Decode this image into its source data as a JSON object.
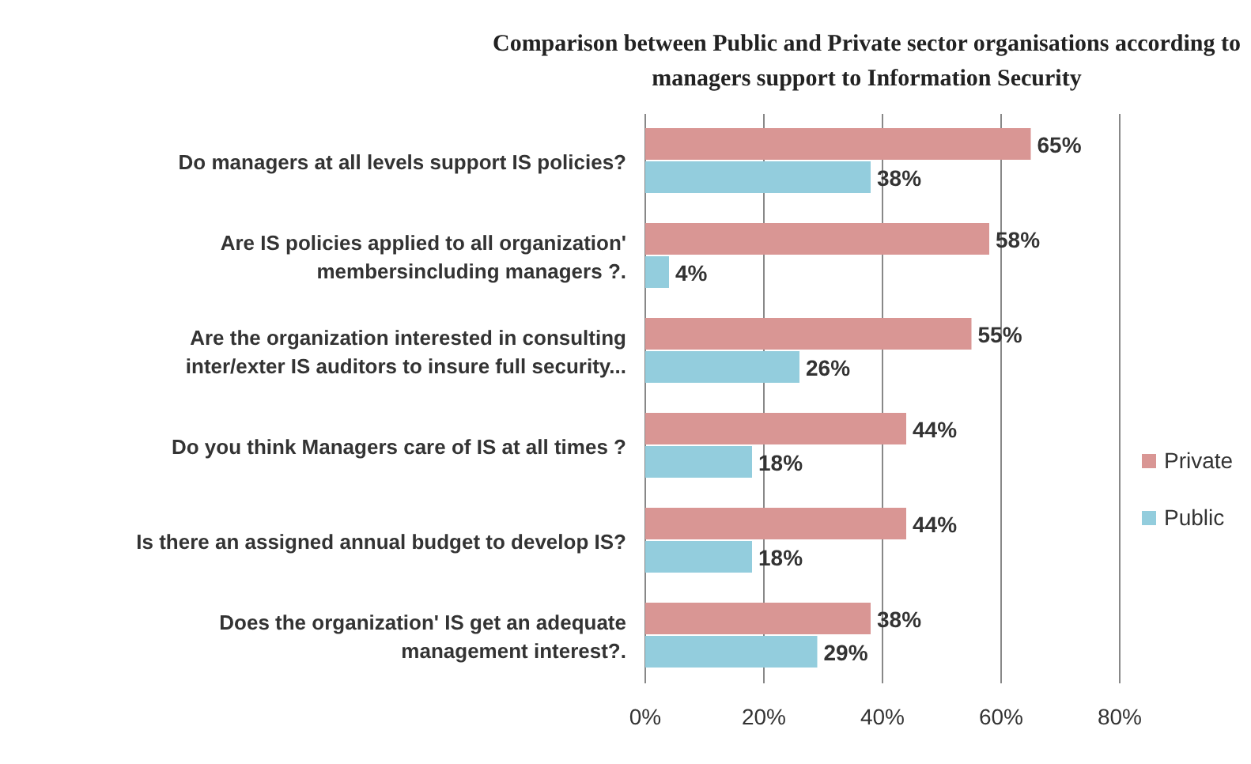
{
  "chart_data": {
    "type": "bar",
    "orientation": "horizontal",
    "title": "Comparison between Public and Private sector  organisations according to managers support to Information Security",
    "categories": [
      "Do managers at all levels support IS policies?",
      "Are IS policies applied to all organization' membersincluding  managers  ?.",
      "Are the organization interested in consulting inter/exter IS auditors to insure full security...",
      "Do you think Managers care of IS at all times ?",
      "Is there an assigned annual budget to develop IS?",
      "Does the organization' IS get an adequate management interest?."
    ],
    "series": [
      {
        "name": "Private",
        "color": "#d99694",
        "values": [
          65,
          58,
          55,
          44,
          44,
          38
        ],
        "value_labels": [
          "65%",
          "58%",
          "55%",
          "44%",
          "44%",
          "38%"
        ]
      },
      {
        "name": "Public",
        "color": "#93cddd",
        "values": [
          38,
          4,
          26,
          18,
          18,
          29
        ],
        "value_labels": [
          "38%",
          "4%",
          "26%",
          "18%",
          "18%",
          "29%"
        ]
      }
    ],
    "xlim": [
      0,
      80
    ],
    "xticks": [
      {
        "value": 0,
        "label": "0%"
      },
      {
        "value": 20,
        "label": "20%"
      },
      {
        "value": 40,
        "label": "40%"
      },
      {
        "value": 60,
        "label": "60%"
      },
      {
        "value": 80,
        "label": "80%"
      }
    ],
    "grid": "x",
    "legend": "right"
  }
}
